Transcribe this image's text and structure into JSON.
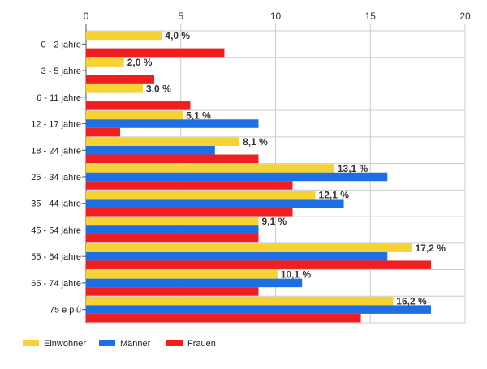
{
  "colors": {
    "einwohner": "#f7d233",
    "maenner": "#1e6ee6",
    "frauen": "#f01e1e",
    "grid": "#cccccc",
    "axis": "#555555"
  },
  "chart_data": {
    "type": "bar",
    "orientation": "horizontal",
    "xlim": [
      0,
      20
    ],
    "ticks": [
      0,
      5,
      10,
      15,
      20
    ],
    "tick_labels": [
      "0",
      "5",
      "10",
      "15",
      "20"
    ],
    "grid": true,
    "legend_position": "bottom-left",
    "categories": [
      "0 - 2 jahre",
      "3 - 5 jahre",
      "6 - 11 jahre",
      "12 - 17 jahre",
      "18 - 24 jahre",
      "25 - 34 jahre",
      "35 - 44 jahre",
      "45 - 54 jahre",
      "55 - 64 jahre",
      "65 - 74 jahre",
      "75 e più"
    ],
    "series": [
      {
        "name": "Einwohner",
        "color_key": "einwohner",
        "values": [
          4.0,
          2.0,
          3.0,
          5.1,
          8.1,
          13.1,
          12.1,
          9.1,
          17.2,
          10.1,
          16.2
        ],
        "labels": [
          "4,0 %",
          "2,0 %",
          "3,0 %",
          "5,1 %",
          "8,1 %",
          "13,1 %",
          "12,1 %",
          "9,1 %",
          "17,2 %",
          "10,1 %",
          "16,2 %"
        ]
      },
      {
        "name": "Männer",
        "color_key": "maenner",
        "values": [
          0,
          0,
          0,
          9.1,
          6.8,
          15.9,
          13.6,
          9.1,
          15.9,
          11.4,
          18.2
        ]
      },
      {
        "name": "Frauen",
        "color_key": "frauen",
        "values": [
          7.3,
          3.6,
          5.5,
          1.8,
          9.1,
          10.9,
          10.9,
          9.1,
          18.2,
          9.1,
          14.5
        ]
      }
    ]
  }
}
